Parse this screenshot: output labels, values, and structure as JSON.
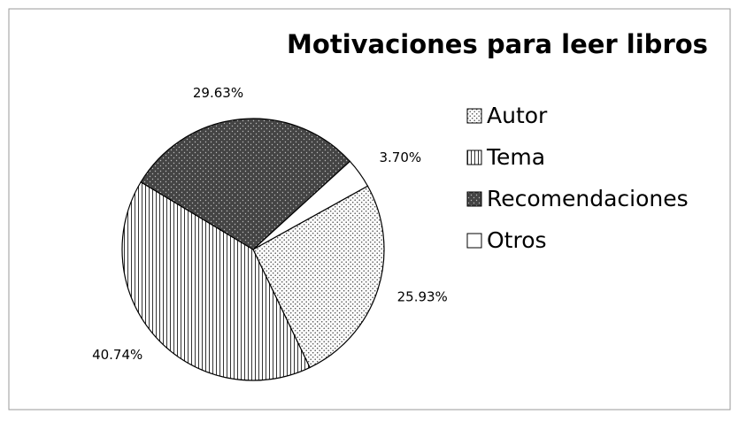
{
  "chart_data": {
    "type": "pie",
    "title": "Motivaciones para leer libros",
    "categories": [
      "Autor",
      "Tema",
      "Recomendaciones",
      "Otros"
    ],
    "values": [
      25.93,
      40.74,
      29.63,
      3.7
    ],
    "value_labels": [
      "25.93%",
      "40.74%",
      "29.63%",
      "3.70%"
    ],
    "fills": [
      "light-dots",
      "vertical-lines",
      "dark-dots",
      "white"
    ],
    "legend": "right"
  }
}
